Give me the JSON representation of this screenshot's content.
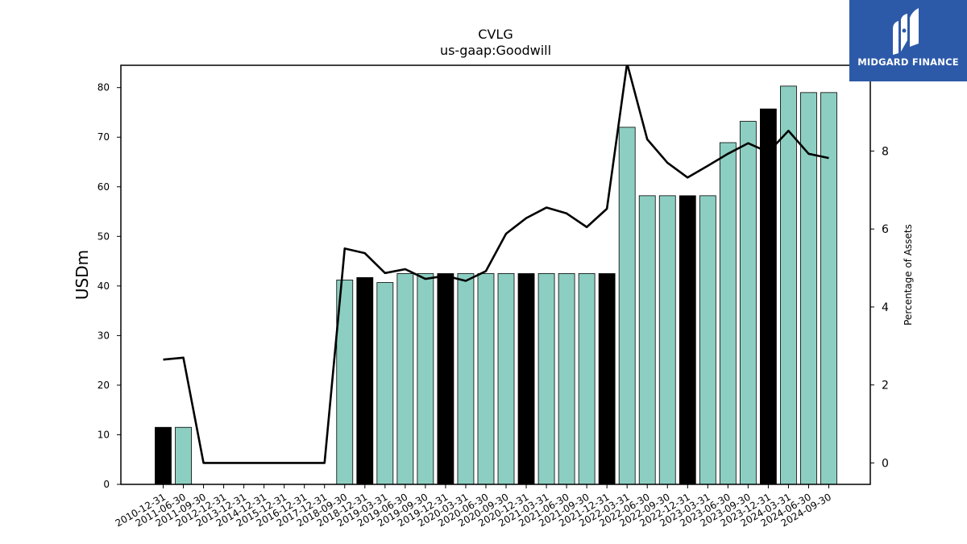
{
  "chart_data": {
    "type": "bar",
    "title": "CVLG",
    "subtitle": "us-gaap:Goodwill",
    "ylabel": "USDm",
    "y2label": "Percentage of Assets",
    "ylim": [
      0,
      84.5
    ],
    "y2lim": [
      -0.55,
      10.2
    ],
    "yticks": [
      0,
      10,
      20,
      30,
      40,
      50,
      60,
      70,
      80
    ],
    "y2ticks": [
      0,
      2,
      4,
      6,
      8
    ],
    "grid": false,
    "colors": {
      "bar_default": "#8ccfc2",
      "bar_highlight": "#000000",
      "bar_edge": "#000000",
      "line": "#000000"
    },
    "categories": [
      "2010-12-31",
      "2011-06-30",
      "2011-09-30",
      "2012-12-31",
      "2013-12-31",
      "2014-12-31",
      "2015-12-31",
      "2016-12-31",
      "2017-12-31",
      "2018-09-30",
      "2018-12-31",
      "2019-03-31",
      "2019-06-30",
      "2019-09-30",
      "2019-12-31",
      "2020-03-31",
      "2020-06-30",
      "2020-09-30",
      "2020-12-31",
      "2021-03-31",
      "2021-06-30",
      "2021-09-30",
      "2021-12-31",
      "2022-03-31",
      "2022-06-30",
      "2022-09-30",
      "2022-12-31",
      "2023-03-31",
      "2023-06-30",
      "2023-09-30",
      "2023-12-31",
      "2024-03-31",
      "2024-06-30",
      "2024-09-30"
    ],
    "series": [
      {
        "name": "",
        "kind": "bar",
        "values": [
          11.5,
          11.5,
          0,
          0,
          0,
          0,
          0,
          0,
          0,
          41.2,
          41.7,
          40.7,
          42.5,
          42.5,
          42.5,
          42.5,
          42.5,
          42.5,
          42.5,
          42.5,
          42.5,
          42.5,
          42.5,
          72.0,
          58.2,
          58.2,
          58.2,
          58.2,
          68.9,
          73.2,
          75.7,
          80.3,
          79.0,
          79.0
        ],
        "highlight": [
          true,
          false,
          false,
          false,
          false,
          false,
          false,
          false,
          false,
          false,
          true,
          false,
          false,
          false,
          true,
          false,
          false,
          false,
          true,
          false,
          false,
          false,
          true,
          false,
          false,
          false,
          true,
          false,
          false,
          false,
          true,
          false,
          false,
          false
        ]
      },
      {
        "name": "",
        "kind": "line",
        "axis": "right",
        "values": [
          2.65,
          2.7,
          0,
          0,
          0,
          0,
          0,
          0,
          0,
          5.5,
          5.38,
          4.87,
          4.97,
          4.72,
          4.8,
          4.67,
          4.92,
          5.88,
          6.28,
          6.55,
          6.4,
          6.05,
          6.52,
          10.25,
          8.3,
          7.7,
          7.32,
          7.62,
          7.93,
          8.2,
          7.97,
          8.52,
          7.93,
          7.82
        ]
      }
    ]
  },
  "branding": {
    "logo_text": "MIDGARD FINANCE",
    "logo_icon": "midgard-m-icon",
    "color": "#2d5aa8"
  }
}
